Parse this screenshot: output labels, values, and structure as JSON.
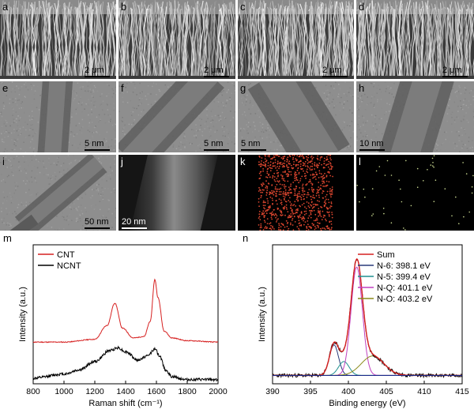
{
  "panels": {
    "a": {
      "letter": "a",
      "scale": "2 μm"
    },
    "b": {
      "letter": "b",
      "scale": "2 μm"
    },
    "c": {
      "letter": "c",
      "scale": "2 μm"
    },
    "d": {
      "letter": "d",
      "scale": "2 μm"
    },
    "e": {
      "letter": "e",
      "scale": "5 nm"
    },
    "f": {
      "letter": "f",
      "scale": "5 nm"
    },
    "g": {
      "letter": "g",
      "scale": "5 nm"
    },
    "h": {
      "letter": "h",
      "scale": "10 nm"
    },
    "i": {
      "letter": "i",
      "scale": "50 nm"
    },
    "j": {
      "letter": "j",
      "scale": "20 nm"
    },
    "k": {
      "letter": "k"
    },
    "l": {
      "letter": "l"
    }
  },
  "chart_data": [
    {
      "panel": "m",
      "type": "line",
      "xlabel": "Raman shift (cm⁻¹)",
      "ylabel": "Intensity (a.u.)",
      "xlim": [
        800,
        2000
      ],
      "xticks": [
        "800",
        "1000",
        "1200",
        "1400",
        "1600",
        "1800",
        "2000"
      ],
      "legend_position": "top-left",
      "colors": {
        "CNT": "#d62020",
        "NCNT": "#000000"
      },
      "series": [
        {
          "name": "CNT",
          "x": [
            800,
            1000,
            1200,
            1280,
            1330,
            1380,
            1450,
            1520,
            1560,
            1590,
            1610,
            1650,
            1700,
            1800,
            2000
          ],
          "y": [
            0.3,
            0.3,
            0.32,
            0.42,
            0.58,
            0.4,
            0.33,
            0.34,
            0.45,
            0.75,
            0.62,
            0.38,
            0.33,
            0.31,
            0.3
          ]
        },
        {
          "name": "NCNT",
          "x": [
            800,
            1000,
            1100,
            1200,
            1300,
            1350,
            1400,
            1480,
            1540,
            1590,
            1620,
            1660,
            1700,
            1800,
            2000
          ],
          "y": [
            0.04,
            0.07,
            0.1,
            0.16,
            0.24,
            0.26,
            0.23,
            0.17,
            0.2,
            0.25,
            0.2,
            0.1,
            0.05,
            0.03,
            0.03
          ]
        }
      ]
    },
    {
      "panel": "n",
      "type": "line",
      "xlabel": "Binding energy (eV)",
      "ylabel": "Intensity (a.u.)",
      "xlim": [
        390,
        415
      ],
      "xticks": [
        "390",
        "395",
        "400",
        "405",
        "410",
        "415"
      ],
      "legend_position": "top-right",
      "baseline": 0.06,
      "colors": {
        "Sum": "#d62020",
        "N-6": "#2a3a7a",
        "N-5": "#1f8f8f",
        "N-Q": "#c040c0",
        "N-O": "#8a8a1a",
        "raw": "#000000"
      },
      "series": [
        {
          "name": "Sum",
          "center": null,
          "components": [
            "N-6",
            "N-5",
            "N-Q",
            "N-O"
          ]
        },
        {
          "name": "N-6: 398.1 eV",
          "key": "N-6",
          "center": 398.1,
          "amplitude": 0.22,
          "width": 0.6
        },
        {
          "name": "N-5: 399.4 eV",
          "key": "N-5",
          "center": 399.4,
          "amplitude": 0.1,
          "width": 0.7
        },
        {
          "name": "N-Q: 401.1 eV",
          "key": "N-Q",
          "center": 401.1,
          "amplitude": 0.78,
          "width": 0.75
        },
        {
          "name": "N-O: 403.2 eV",
          "key": "N-O",
          "center": 403.2,
          "amplitude": 0.14,
          "width": 1.5
        }
      ]
    }
  ]
}
